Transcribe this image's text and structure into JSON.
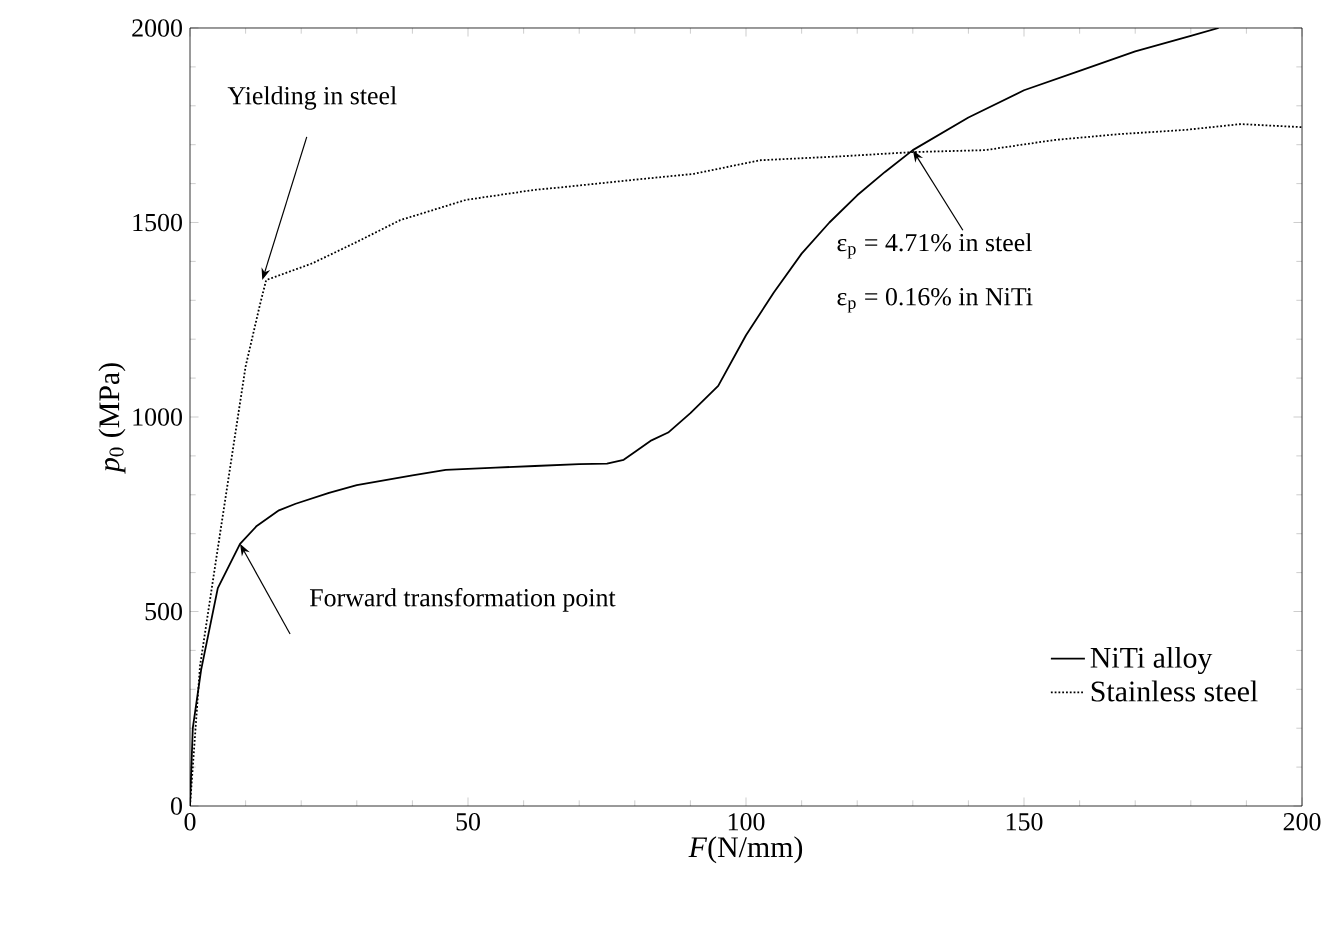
{
  "chart_data": {
    "type": "line",
    "xlabel": "*F*(N/mm)",
    "ylabel": "*p*$_{0}$ (MPa)",
    "xlim": [
      0,
      200
    ],
    "ylim": [
      0,
      2000
    ],
    "xticks": [
      0,
      50,
      100,
      150,
      200
    ],
    "yticks": [
      0,
      500,
      1000,
      1500,
      2000
    ],
    "legend": "bottom right",
    "grid": false,
    "marker": "none",
    "series": [
      {
        "name": "NiTi alloy",
        "color": "#000000",
        "line_style": "solid",
        "x": [
          0,
          0.5,
          2,
          5,
          9,
          12,
          16,
          19,
          25,
          30,
          40,
          46,
          55,
          62,
          70,
          75,
          78,
          80,
          83,
          86,
          90,
          95,
          100,
          105,
          110,
          115,
          120,
          125,
          130,
          140,
          150,
          160,
          170,
          180,
          185
        ],
        "values": [
          0,
          200,
          350,
          560,
          674,
          720,
          760,
          777,
          805,
          825,
          850,
          864,
          870,
          874,
          879,
          880,
          890,
          910,
          940,
          960,
          1010,
          1080,
          1210,
          1320,
          1420,
          1500,
          1570,
          1630,
          1686,
          1770,
          1840,
          1890,
          1940,
          1980,
          2000
        ]
      },
      {
        "name": "Stainless steel",
        "color": "#000000",
        "line_style": "dotted",
        "x": [
          0,
          1.8,
          5.4,
          10,
          12.6,
          13.7,
          22,
          30,
          37.8,
          49.6,
          62,
          66.5,
          80,
          90.6,
          102.5,
          117,
          130,
          143,
          155.4,
          167,
          179,
          189,
          200
        ],
        "values": [
          0,
          360,
          700,
          1130,
          1290,
          1352,
          1395,
          1450,
          1506,
          1558,
          1584,
          1590,
          1610,
          1625,
          1660,
          1670,
          1681,
          1686,
          1712,
          1727,
          1738,
          1753,
          1745
        ]
      }
    ],
    "annotations": [
      {
        "text": "Yielding in steel",
        "x": 13,
        "y": 1352
      },
      {
        "text": "Forward transformation point",
        "x": 9,
        "y": 674
      },
      {
        "text": "ε$_{p}$ = 4.71% in steel",
        "x": 130,
        "y": 1686
      },
      "ε$_{p}$ = 0.16% in NiTi"
    ]
  }
}
